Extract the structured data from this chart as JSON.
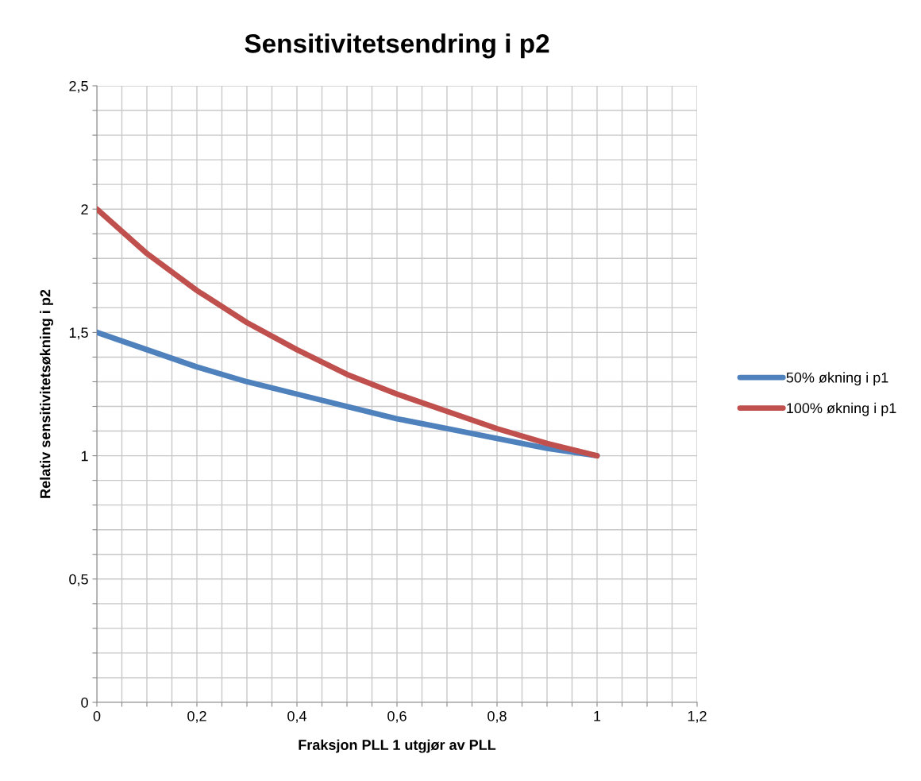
{
  "chart_data": {
    "type": "line",
    "title": "Sensitivitetsendring i p2",
    "xlabel": "Fraksjon PLL 1 utgjør av PLL",
    "ylabel": "Relativ sensitivitetsøkning i p2",
    "x": [
      0,
      0.1,
      0.2,
      0.3,
      0.4,
      0.5,
      0.6,
      0.7,
      0.8,
      0.9,
      1
    ],
    "series": [
      {
        "name": "50% økning i p1",
        "color": "#4f81bd",
        "values": [
          1.5,
          1.43,
          1.36,
          1.3,
          1.25,
          1.2,
          1.15,
          1.11,
          1.07,
          1.03,
          1
        ]
      },
      {
        "name": "100% økning i p1",
        "color": "#c0504d",
        "values": [
          2,
          1.82,
          1.67,
          1.54,
          1.43,
          1.33,
          1.25,
          1.18,
          1.11,
          1.05,
          1
        ]
      }
    ],
    "xlim": [
      0,
      1.2
    ],
    "ylim": [
      0,
      2.5
    ],
    "xticks": [
      0,
      {
        "value": 0.05,
        "label": null
      },
      {
        "value": 0.1,
        "label": null
      },
      {
        "value": 0.15,
        "label": null
      },
      {
        "value": 0.2,
        "label": "0,2"
      },
      {
        "value": 0.25,
        "label": null
      },
      {
        "value": 0.3,
        "label": null
      },
      {
        "value": 0.35,
        "label": null
      },
      {
        "value": 0.4,
        "label": "0,4"
      },
      {
        "value": 0.45,
        "label": null
      },
      {
        "value": 0.5,
        "label": null
      },
      {
        "value": 0.55,
        "label": null
      },
      {
        "value": 0.6,
        "label": "0,6"
      },
      {
        "value": 0.65,
        "label": null
      },
      {
        "value": 0.7,
        "label": null
      },
      {
        "value": 0.75,
        "label": null
      },
      {
        "value": 0.8,
        "label": "0,8"
      },
      {
        "value": 0.85,
        "label": null
      },
      {
        "value": 0.9,
        "label": null
      },
      {
        "value": 0.95,
        "label": null
      },
      1,
      {
        "value": 1.05,
        "label": null
      },
      {
        "value": 1.1,
        "label": null
      },
      {
        "value": 1.15,
        "label": null
      },
      {
        "value": 1.2,
        "label": "1,2"
      }
    ],
    "yticks": [
      0,
      {
        "value": 0.1,
        "label": null
      },
      {
        "value": 0.2,
        "label": null
      },
      {
        "value": 0.3,
        "label": null
      },
      {
        "value": 0.4,
        "label": null
      },
      {
        "value": 0.5,
        "label": "0,5"
      },
      {
        "value": 0.6,
        "label": null
      },
      {
        "value": 0.7,
        "label": null
      },
      {
        "value": 0.8,
        "label": null
      },
      {
        "value": 0.9,
        "label": null
      },
      1,
      {
        "value": 1.1,
        "label": null
      },
      {
        "value": 1.2,
        "label": null
      },
      {
        "value": 1.3,
        "label": null
      },
      {
        "value": 1.4,
        "label": null
      },
      {
        "value": 1.5,
        "label": "1,5"
      },
      {
        "value": 1.6,
        "label": null
      },
      {
        "value": 1.7,
        "label": null
      },
      {
        "value": 1.8,
        "label": null
      },
      {
        "value": 1.9,
        "label": null
      },
      2,
      {
        "value": 2.1,
        "label": null
      },
      {
        "value": 2.2,
        "label": null
      },
      {
        "value": 2.3,
        "label": null
      },
      {
        "value": 2.4,
        "label": null
      },
      {
        "value": 2.5,
        "label": "2,5"
      }
    ],
    "grid": true,
    "legend": "right",
    "marker": "none",
    "line_style": "solid"
  }
}
